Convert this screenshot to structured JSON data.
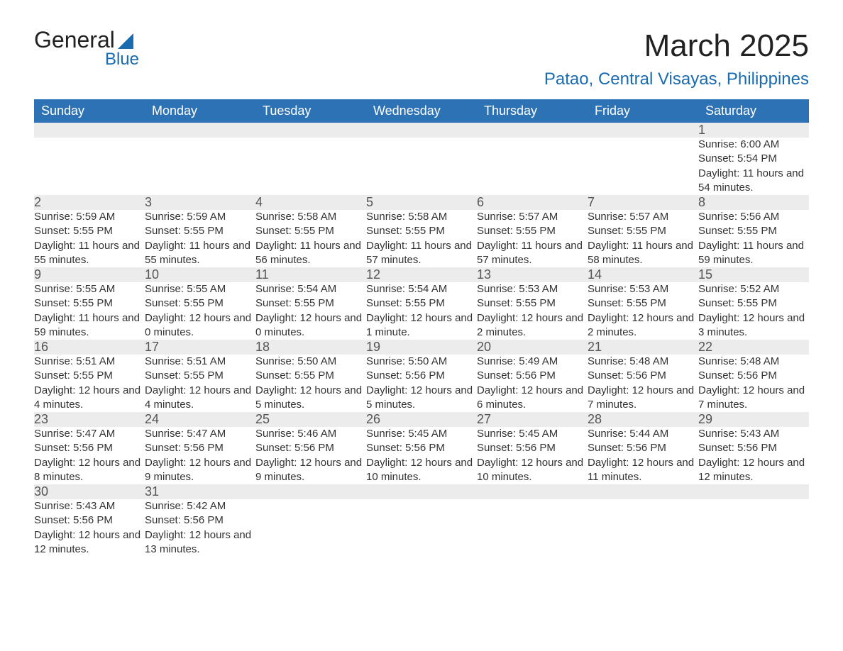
{
  "brand": {
    "top": "General",
    "bottom": "Blue",
    "accent_color": "#1a6bb0"
  },
  "title": {
    "month": "March 2025",
    "location": "Patao, Central Visayas, Philippines"
  },
  "colors": {
    "header_bg": "#2d72b5",
    "header_text": "#ffffff",
    "daynum_bg": "#ececec",
    "daynum_text": "#555555",
    "row_divider": "#2d72b5",
    "body_text": "#333333",
    "background": "#ffffff"
  },
  "typography": {
    "title_fontsize_pt": 33,
    "location_fontsize_pt": 18,
    "header_fontsize_pt": 14,
    "daynum_fontsize_pt": 14,
    "detail_fontsize_pt": 11
  },
  "layout": {
    "columns": 7,
    "rows": 6,
    "aspect": "1188x918"
  },
  "day_headers": [
    "Sunday",
    "Monday",
    "Tuesday",
    "Wednesday",
    "Thursday",
    "Friday",
    "Saturday"
  ],
  "weeks": [
    [
      null,
      null,
      null,
      null,
      null,
      null,
      {
        "n": "1",
        "sunrise": "Sunrise: 6:00 AM",
        "sunset": "Sunset: 5:54 PM",
        "daylight": "Daylight: 11 hours and 54 minutes."
      }
    ],
    [
      {
        "n": "2",
        "sunrise": "Sunrise: 5:59 AM",
        "sunset": "Sunset: 5:55 PM",
        "daylight": "Daylight: 11 hours and 55 minutes."
      },
      {
        "n": "3",
        "sunrise": "Sunrise: 5:59 AM",
        "sunset": "Sunset: 5:55 PM",
        "daylight": "Daylight: 11 hours and 55 minutes."
      },
      {
        "n": "4",
        "sunrise": "Sunrise: 5:58 AM",
        "sunset": "Sunset: 5:55 PM",
        "daylight": "Daylight: 11 hours and 56 minutes."
      },
      {
        "n": "5",
        "sunrise": "Sunrise: 5:58 AM",
        "sunset": "Sunset: 5:55 PM",
        "daylight": "Daylight: 11 hours and 57 minutes."
      },
      {
        "n": "6",
        "sunrise": "Sunrise: 5:57 AM",
        "sunset": "Sunset: 5:55 PM",
        "daylight": "Daylight: 11 hours and 57 minutes."
      },
      {
        "n": "7",
        "sunrise": "Sunrise: 5:57 AM",
        "sunset": "Sunset: 5:55 PM",
        "daylight": "Daylight: 11 hours and 58 minutes."
      },
      {
        "n": "8",
        "sunrise": "Sunrise: 5:56 AM",
        "sunset": "Sunset: 5:55 PM",
        "daylight": "Daylight: 11 hours and 59 minutes."
      }
    ],
    [
      {
        "n": "9",
        "sunrise": "Sunrise: 5:55 AM",
        "sunset": "Sunset: 5:55 PM",
        "daylight": "Daylight: 11 hours and 59 minutes."
      },
      {
        "n": "10",
        "sunrise": "Sunrise: 5:55 AM",
        "sunset": "Sunset: 5:55 PM",
        "daylight": "Daylight: 12 hours and 0 minutes."
      },
      {
        "n": "11",
        "sunrise": "Sunrise: 5:54 AM",
        "sunset": "Sunset: 5:55 PM",
        "daylight": "Daylight: 12 hours and 0 minutes."
      },
      {
        "n": "12",
        "sunrise": "Sunrise: 5:54 AM",
        "sunset": "Sunset: 5:55 PM",
        "daylight": "Daylight: 12 hours and 1 minute."
      },
      {
        "n": "13",
        "sunrise": "Sunrise: 5:53 AM",
        "sunset": "Sunset: 5:55 PM",
        "daylight": "Daylight: 12 hours and 2 minutes."
      },
      {
        "n": "14",
        "sunrise": "Sunrise: 5:53 AM",
        "sunset": "Sunset: 5:55 PM",
        "daylight": "Daylight: 12 hours and 2 minutes."
      },
      {
        "n": "15",
        "sunrise": "Sunrise: 5:52 AM",
        "sunset": "Sunset: 5:55 PM",
        "daylight": "Daylight: 12 hours and 3 minutes."
      }
    ],
    [
      {
        "n": "16",
        "sunrise": "Sunrise: 5:51 AM",
        "sunset": "Sunset: 5:55 PM",
        "daylight": "Daylight: 12 hours and 4 minutes."
      },
      {
        "n": "17",
        "sunrise": "Sunrise: 5:51 AM",
        "sunset": "Sunset: 5:55 PM",
        "daylight": "Daylight: 12 hours and 4 minutes."
      },
      {
        "n": "18",
        "sunrise": "Sunrise: 5:50 AM",
        "sunset": "Sunset: 5:55 PM",
        "daylight": "Daylight: 12 hours and 5 minutes."
      },
      {
        "n": "19",
        "sunrise": "Sunrise: 5:50 AM",
        "sunset": "Sunset: 5:56 PM",
        "daylight": "Daylight: 12 hours and 5 minutes."
      },
      {
        "n": "20",
        "sunrise": "Sunrise: 5:49 AM",
        "sunset": "Sunset: 5:56 PM",
        "daylight": "Daylight: 12 hours and 6 minutes."
      },
      {
        "n": "21",
        "sunrise": "Sunrise: 5:48 AM",
        "sunset": "Sunset: 5:56 PM",
        "daylight": "Daylight: 12 hours and 7 minutes."
      },
      {
        "n": "22",
        "sunrise": "Sunrise: 5:48 AM",
        "sunset": "Sunset: 5:56 PM",
        "daylight": "Daylight: 12 hours and 7 minutes."
      }
    ],
    [
      {
        "n": "23",
        "sunrise": "Sunrise: 5:47 AM",
        "sunset": "Sunset: 5:56 PM",
        "daylight": "Daylight: 12 hours and 8 minutes."
      },
      {
        "n": "24",
        "sunrise": "Sunrise: 5:47 AM",
        "sunset": "Sunset: 5:56 PM",
        "daylight": "Daylight: 12 hours and 9 minutes."
      },
      {
        "n": "25",
        "sunrise": "Sunrise: 5:46 AM",
        "sunset": "Sunset: 5:56 PM",
        "daylight": "Daylight: 12 hours and 9 minutes."
      },
      {
        "n": "26",
        "sunrise": "Sunrise: 5:45 AM",
        "sunset": "Sunset: 5:56 PM",
        "daylight": "Daylight: 12 hours and 10 minutes."
      },
      {
        "n": "27",
        "sunrise": "Sunrise: 5:45 AM",
        "sunset": "Sunset: 5:56 PM",
        "daylight": "Daylight: 12 hours and 10 minutes."
      },
      {
        "n": "28",
        "sunrise": "Sunrise: 5:44 AM",
        "sunset": "Sunset: 5:56 PM",
        "daylight": "Daylight: 12 hours and 11 minutes."
      },
      {
        "n": "29",
        "sunrise": "Sunrise: 5:43 AM",
        "sunset": "Sunset: 5:56 PM",
        "daylight": "Daylight: 12 hours and 12 minutes."
      }
    ],
    [
      {
        "n": "30",
        "sunrise": "Sunrise: 5:43 AM",
        "sunset": "Sunset: 5:56 PM",
        "daylight": "Daylight: 12 hours and 12 minutes."
      },
      {
        "n": "31",
        "sunrise": "Sunrise: 5:42 AM",
        "sunset": "Sunset: 5:56 PM",
        "daylight": "Daylight: 12 hours and 13 minutes."
      },
      null,
      null,
      null,
      null,
      null
    ]
  ]
}
